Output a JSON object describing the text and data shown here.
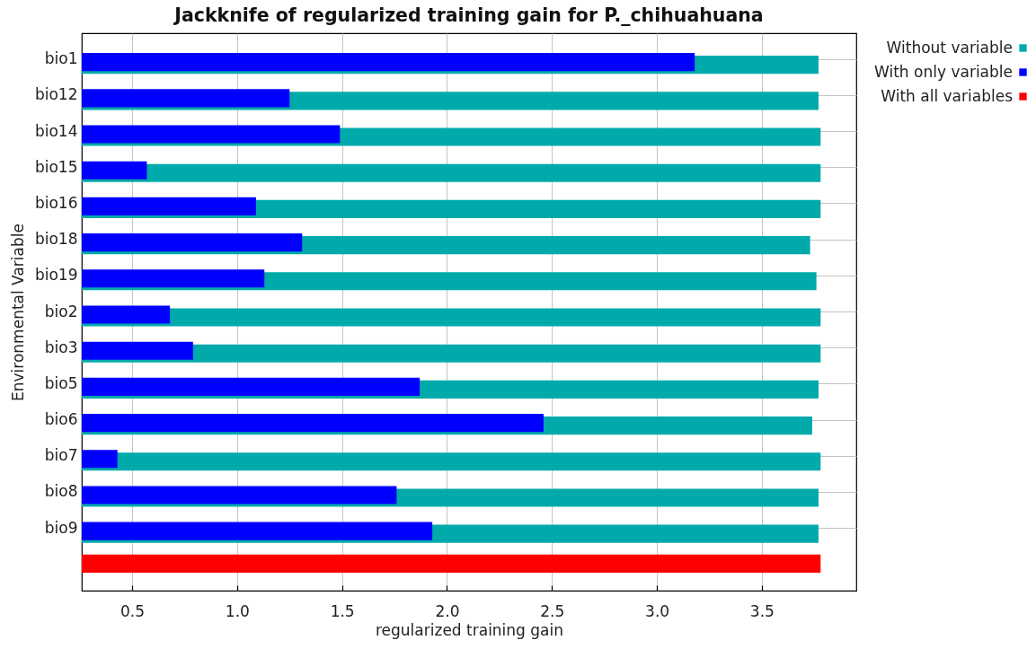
{
  "chart_data": {
    "type": "bar",
    "orientation": "horizontal",
    "title": "Jackknife of regularized training gain for P._chihuahuana",
    "xlabel": "regularized training gain",
    "ylabel": "Environmental Variable",
    "categories": [
      "bio1",
      "bio12",
      "bio14",
      "bio15",
      "bio16",
      "bio18",
      "bio19",
      "bio2",
      "bio3",
      "bio5",
      "bio6",
      "bio7",
      "bio8",
      "bio9",
      null
    ],
    "series": [
      {
        "name": "Without variable",
        "color": "#00aaaa",
        "values": [
          3.77,
          3.77,
          3.78,
          3.78,
          3.78,
          3.73,
          3.76,
          3.78,
          3.78,
          3.77,
          3.74,
          3.78,
          3.77,
          3.77,
          null
        ]
      },
      {
        "name": "With only variable",
        "color": "#0000ff",
        "values": [
          3.18,
          1.25,
          1.49,
          0.57,
          1.09,
          1.31,
          1.13,
          0.68,
          0.79,
          1.87,
          2.46,
          0.43,
          1.76,
          1.93,
          null
        ]
      },
      {
        "name": "With all variables",
        "color": "#ff0000",
        "values": [
          null,
          null,
          null,
          null,
          null,
          null,
          null,
          null,
          null,
          null,
          null,
          null,
          null,
          null,
          3.78
        ]
      }
    ],
    "xlim": [
      0.26,
      3.95
    ],
    "xticks": [
      0.5,
      {
        "value": 1,
        "label": "1.0"
      },
      1.5,
      {
        "value": 2,
        "label": "2.0"
      },
      2.5,
      {
        "value": 3,
        "label": "3.0"
      },
      3.5
    ],
    "grid": true,
    "legend": "top right"
  }
}
